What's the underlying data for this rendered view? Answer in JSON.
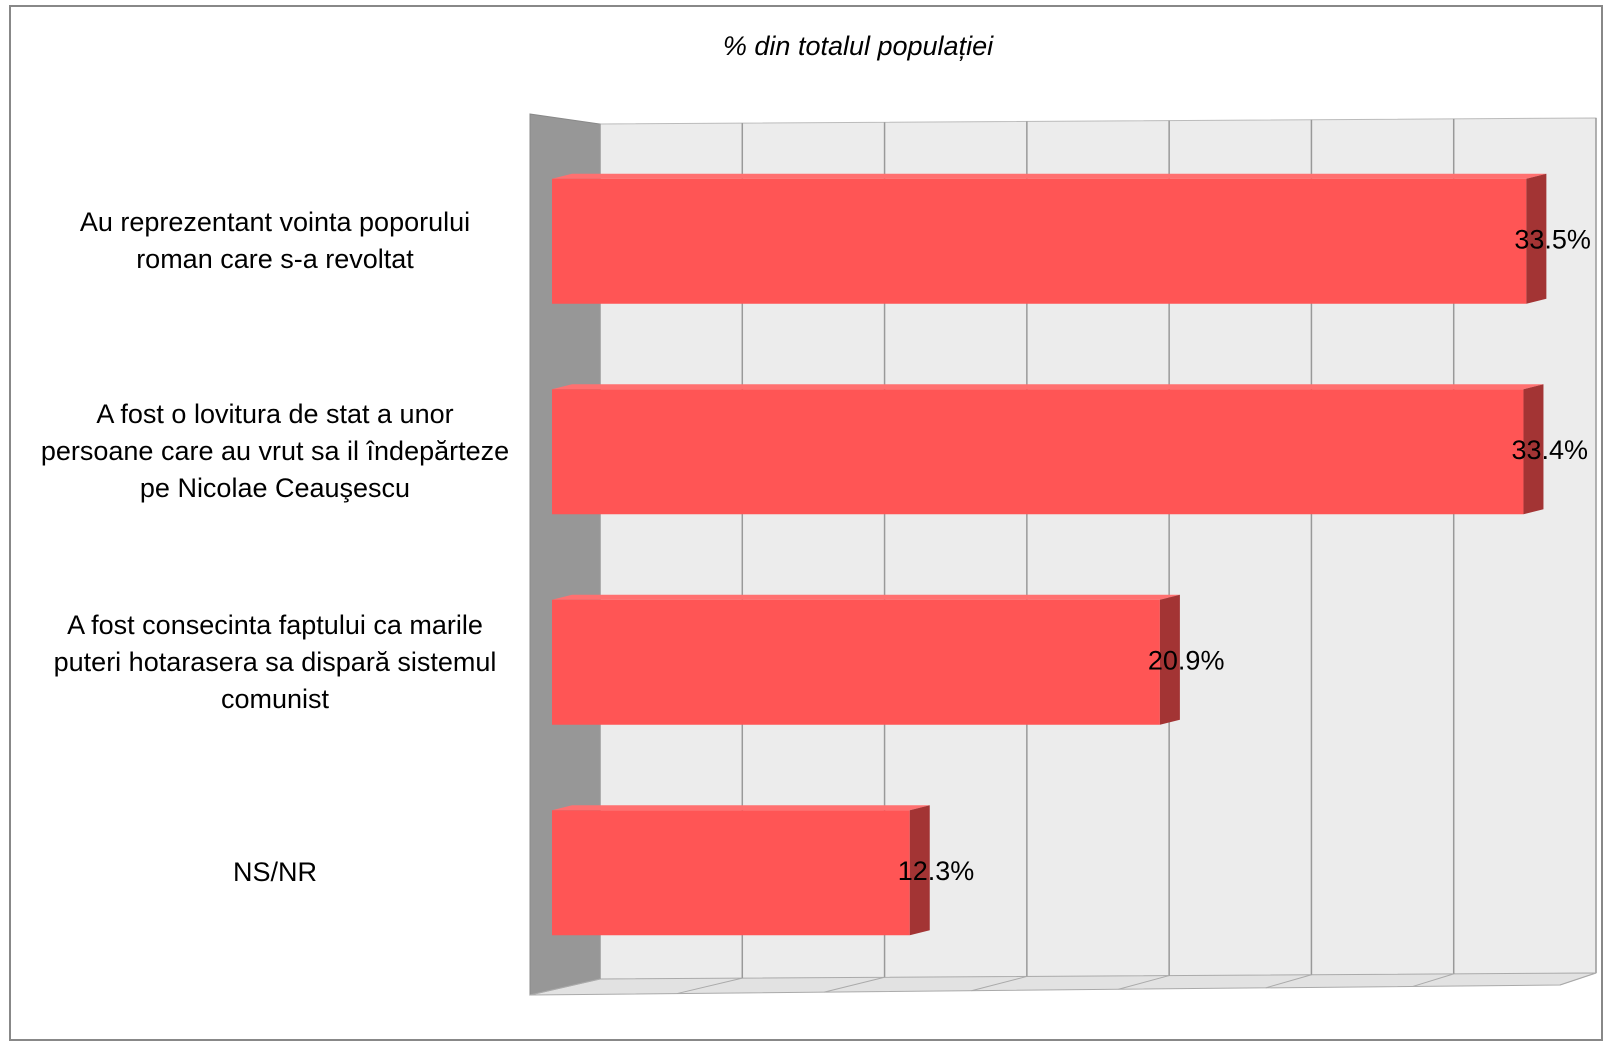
{
  "chart_data": {
    "type": "bar3d_horizontal",
    "title": "% din totalul populației",
    "categories": [
      "Au reprezentant vointa poporului roman care s-a revoltat",
      "A fost o lovitura de stat a unor persoane care au vrut sa il îndepărteze pe Nicolae Ceauşescu",
      "A fost consecinta faptului ca marile puteri hotarasera sa dispară sistemul comunist",
      "NS/NR"
    ],
    "values": [
      33.5,
      33.4,
      20.9,
      12.3
    ],
    "value_labels": [
      "33.5%",
      "33.4%",
      "20.9%",
      "12.3%"
    ],
    "color": "#ff5555",
    "xlim": [
      0,
      35
    ],
    "xticks": [
      0,
      5,
      10,
      15,
      20,
      25,
      30,
      35
    ],
    "grid": true
  }
}
